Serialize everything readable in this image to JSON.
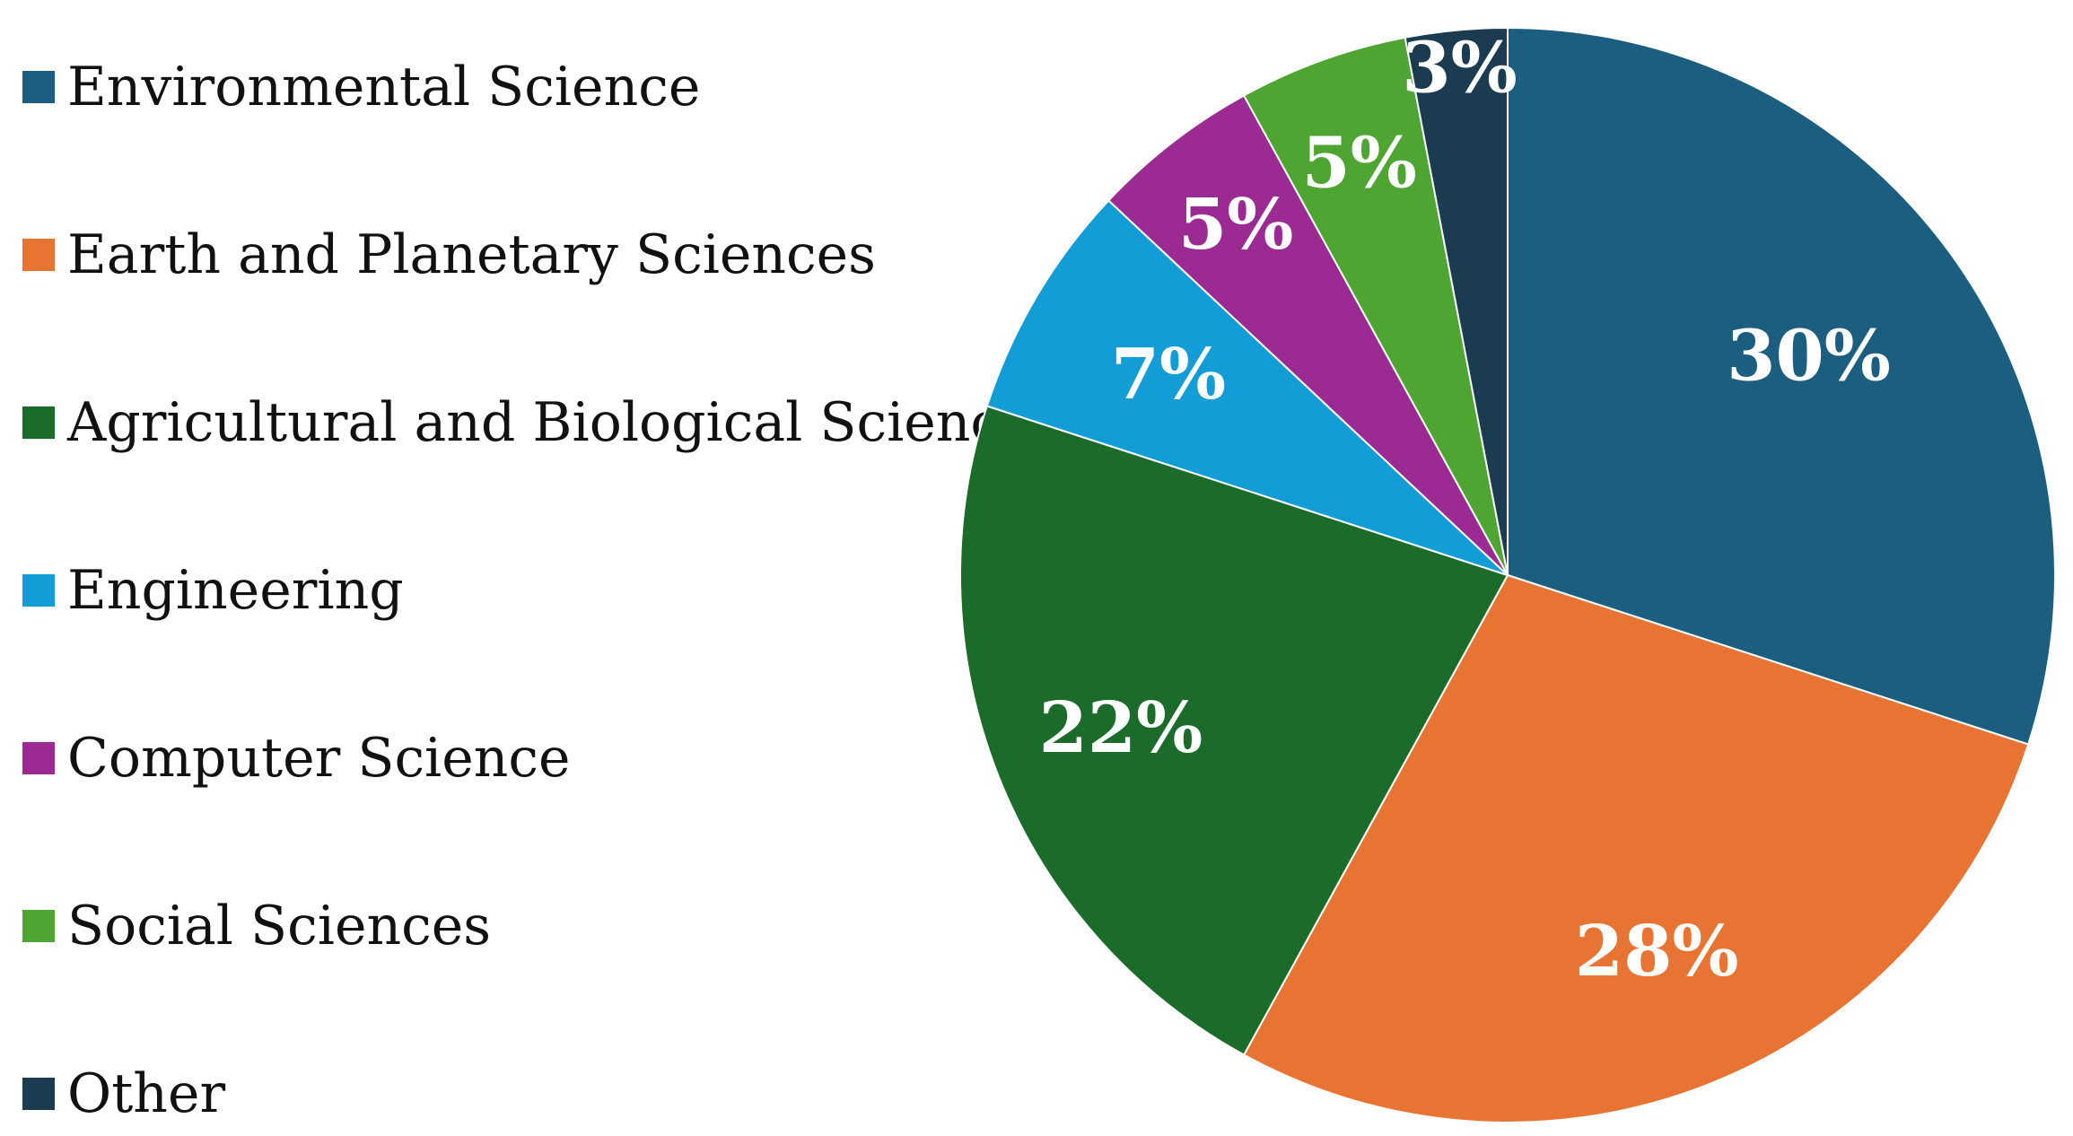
{
  "chart_data": {
    "type": "pie",
    "title": "",
    "legend_position": "left",
    "start_angle": "12 o'clock",
    "direction": "clockwise",
    "slices": [
      {
        "label": "Environmental Science",
        "value": 30,
        "value_label": "30%",
        "color": "#1b5e7f"
      },
      {
        "label": "Earth and Planetary Sciences",
        "value": 28,
        "value_label": "28%",
        "color": "#e87433"
      },
      {
        "label": "Agricultural and Biological Sciences",
        "value": 22,
        "value_label": "22%",
        "color": "#1b6b2b"
      },
      {
        "label": "Engineering",
        "value": 7,
        "value_label": "7%",
        "color": "#129dd6"
      },
      {
        "label": "Computer Science",
        "value": 5,
        "value_label": "5%",
        "color": "#9b2b93"
      },
      {
        "label": "Social Sciences",
        "value": 5,
        "value_label": "5%",
        "color": "#4ea532"
      },
      {
        "label": "Other",
        "value": 3,
        "value_label": "3%",
        "color": "#1a3b50"
      }
    ]
  }
}
